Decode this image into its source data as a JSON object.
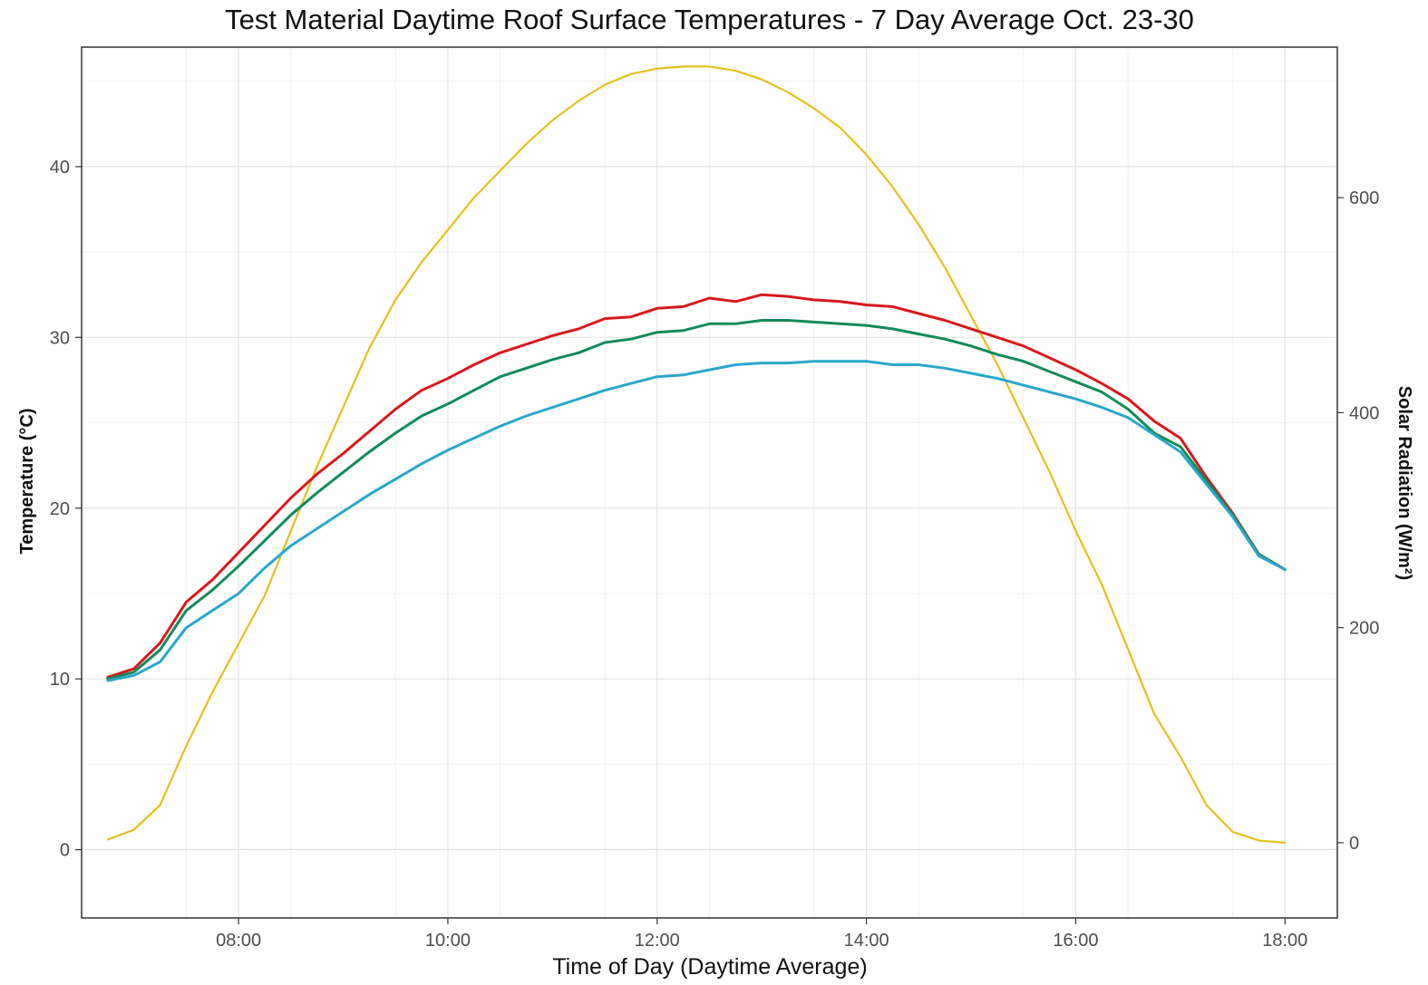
{
  "chart_data": {
    "type": "line",
    "title": "Test Material Daytime Roof Surface Temperatures - 7 Day Average Oct. 23-30",
    "xlabel": "Time of Day (Daytime Average)",
    "ylabel": "Temperature (°C)",
    "y2label": "Solar Radiation (W/m²)",
    "xlim": [
      "06:30",
      "18:30"
    ],
    "ylim": [
      -4,
      47
    ],
    "y2lim": [
      -70,
      740
    ],
    "x_ticks": [
      "08:00",
      "10:00",
      "12:00",
      "14:00",
      "16:00",
      "18:00"
    ],
    "y_ticks": [
      0,
      10,
      20,
      30,
      40
    ],
    "y2_ticks": [
      0,
      200,
      400,
      600
    ],
    "grid": true,
    "legend": "none",
    "series": [
      {
        "color": "#d7191c",
        "axis": "left",
        "x": [
          "06:45",
          "07:00",
          "07:15",
          "07:30",
          "07:45",
          "08:00",
          "08:15",
          "08:30",
          "08:45",
          "09:00",
          "09:15",
          "09:30",
          "09:45",
          "10:00",
          "10:15",
          "10:30",
          "10:45",
          "11:00",
          "11:15",
          "11:30",
          "11:45",
          "12:00",
          "12:15",
          "12:30",
          "12:45",
          "13:00",
          "13:15",
          "13:30",
          "13:45",
          "14:00",
          "14:15",
          "14:30",
          "14:45",
          "15:00",
          "15:15",
          "15:30",
          "15:45",
          "16:00",
          "16:15",
          "16:30",
          "16:45",
          "17:00",
          "17:15",
          "17:30",
          "17:45",
          "18:00"
        ],
        "values": [
          10.1,
          10.6,
          12.1,
          14.5,
          15.8,
          17.4,
          19.0,
          20.6,
          22.0,
          23.2,
          24.5,
          25.8,
          26.9,
          27.6,
          28.4,
          29.1,
          29.6,
          30.1,
          30.5,
          31.1,
          31.2,
          31.7,
          31.8,
          32.3,
          32.1,
          32.5,
          32.4,
          32.2,
          32.1,
          31.9,
          31.8,
          31.4,
          31.0,
          30.5,
          30.0,
          29.5,
          28.8,
          28.1,
          27.3,
          26.4,
          25.1,
          24.1,
          21.8,
          19.7,
          17.3,
          16.4
        ]
      },
      {
        "color": "#138a5b",
        "axis": "left",
        "x": [
          "06:45",
          "07:00",
          "07:15",
          "07:30",
          "07:45",
          "08:00",
          "08:15",
          "08:30",
          "08:45",
          "09:00",
          "09:15",
          "09:30",
          "09:45",
          "10:00",
          "10:15",
          "10:30",
          "10:45",
          "11:00",
          "11:15",
          "11:30",
          "11:45",
          "12:00",
          "12:15",
          "12:30",
          "12:45",
          "13:00",
          "13:15",
          "13:30",
          "13:45",
          "14:00",
          "14:15",
          "14:30",
          "14:45",
          "15:00",
          "15:15",
          "15:30",
          "15:45",
          "16:00",
          "16:15",
          "16:30",
          "16:45",
          "17:00",
          "17:15",
          "17:30",
          "17:45",
          "18:00"
        ],
        "values": [
          10.0,
          10.4,
          11.7,
          14.0,
          15.2,
          16.6,
          18.1,
          19.6,
          20.9,
          22.1,
          23.3,
          24.4,
          25.4,
          26.1,
          26.9,
          27.7,
          28.2,
          28.7,
          29.1,
          29.7,
          29.9,
          30.3,
          30.4,
          30.8,
          30.8,
          31.0,
          31.0,
          30.9,
          30.8,
          30.7,
          30.5,
          30.2,
          29.9,
          29.5,
          29.0,
          28.6,
          28.0,
          27.4,
          26.8,
          25.8,
          24.4,
          23.6,
          21.6,
          19.6,
          17.3,
          16.4
        ]
      },
      {
        "color": "#2aa7c9",
        "axis": "left",
        "x": [
          "06:45",
          "07:00",
          "07:15",
          "07:30",
          "07:45",
          "08:00",
          "08:15",
          "08:30",
          "08:45",
          "09:00",
          "09:15",
          "09:30",
          "09:45",
          "10:00",
          "10:15",
          "10:30",
          "10:45",
          "11:00",
          "11:15",
          "11:30",
          "11:45",
          "12:00",
          "12:15",
          "12:30",
          "12:45",
          "13:00",
          "13:15",
          "13:30",
          "13:45",
          "14:00",
          "14:15",
          "14:30",
          "14:45",
          "15:00",
          "15:15",
          "15:30",
          "15:45",
          "16:00",
          "16:15",
          "16:30",
          "16:45",
          "17:00",
          "17:15",
          "17:30",
          "17:45",
          "18:00"
        ],
        "values": [
          9.9,
          10.2,
          11.0,
          13.0,
          14.0,
          15.0,
          16.5,
          17.8,
          18.8,
          19.8,
          20.8,
          21.7,
          22.6,
          23.4,
          24.1,
          24.8,
          25.4,
          25.9,
          26.4,
          26.9,
          27.3,
          27.7,
          27.8,
          28.1,
          28.4,
          28.5,
          28.5,
          28.6,
          28.6,
          28.6,
          28.4,
          28.4,
          28.2,
          27.9,
          27.6,
          27.2,
          26.8,
          26.4,
          25.9,
          25.3,
          24.3,
          23.3,
          21.4,
          19.5,
          17.2,
          16.4
        ]
      },
      {
        "color": "#e3c11d",
        "axis": "right",
        "x": [
          "06:45",
          "07:00",
          "07:15",
          "07:30",
          "07:45",
          "08:00",
          "08:15",
          "08:30",
          "08:45",
          "09:00",
          "09:15",
          "09:30",
          "09:45",
          "10:00",
          "10:15",
          "10:30",
          "10:45",
          "11:00",
          "11:15",
          "11:30",
          "11:45",
          "12:00",
          "12:15",
          "12:30",
          "12:45",
          "13:00",
          "13:15",
          "13:30",
          "13:45",
          "14:00",
          "14:15",
          "14:30",
          "14:45",
          "15:00",
          "15:15",
          "15:30",
          "15:45",
          "16:00",
          "16:15",
          "16:30",
          "16:45",
          "17:00",
          "17:15",
          "17:30",
          "17:45",
          "18:00"
        ],
        "values": [
          3,
          12,
          35,
          90,
          140,
          185,
          230,
          290,
          350,
          405,
          460,
          505,
          540,
          570,
          600,
          625,
          650,
          672,
          690,
          705,
          715,
          720,
          722,
          722,
          718,
          710,
          698,
          683,
          665,
          640,
          610,
          575,
          535,
          490,
          445,
          395,
          345,
          290,
          240,
          180,
          120,
          80,
          35,
          10,
          2,
          0
        ]
      }
    ]
  }
}
